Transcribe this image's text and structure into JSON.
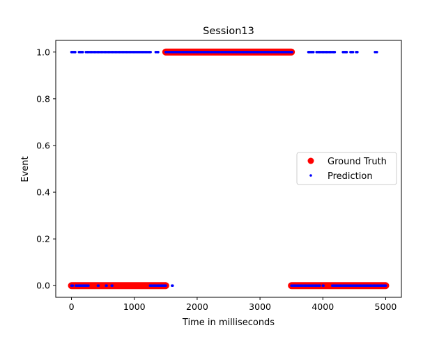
{
  "chart_data": {
    "type": "scatter",
    "title": "Session13",
    "xlabel": "Time in  milliseconds",
    "ylabel": "Event",
    "xlim": [
      -250,
      5250
    ],
    "ylim": [
      -0.05,
      1.05
    ],
    "xticks": [
      0,
      1000,
      2000,
      3000,
      4000,
      5000
    ],
    "yticks": [
      0.0,
      0.2,
      0.4,
      0.6,
      0.8,
      1.0
    ],
    "xtick_labels": [
      "0",
      "1000",
      "2000",
      "3000",
      "4000",
      "5000"
    ],
    "ytick_labels": [
      "0.0",
      "0.2",
      "0.4",
      "0.6",
      "0.8",
      "1.0"
    ],
    "legend_position": "center-right",
    "series": [
      {
        "name": "Ground Truth",
        "color": "#ff0000",
        "marker": "large-dot",
        "segments": [
          {
            "y": 0,
            "x_start": 0,
            "x_end": 1500
          },
          {
            "y": 1,
            "x_start": 1500,
            "x_end": 3500
          },
          {
            "y": 0,
            "x_start": 3500,
            "x_end": 5000
          }
        ]
      },
      {
        "name": "Prediction",
        "color": "#0000ff",
        "marker": "small-dot",
        "segments": [
          {
            "y": 0,
            "x_start": 0,
            "x_end": 20
          },
          {
            "y": 0,
            "x_start": 70,
            "x_end": 270
          },
          {
            "y": 0,
            "x_start": 420,
            "x_end": 430
          },
          {
            "y": 0,
            "x_start": 550,
            "x_end": 560
          },
          {
            "y": 0,
            "x_start": 640,
            "x_end": 650
          },
          {
            "y": 0,
            "x_start": 1250,
            "x_end": 1500
          },
          {
            "y": 0,
            "x_start": 1600,
            "x_end": 1610
          },
          {
            "y": 0,
            "x_start": 3500,
            "x_end": 3950
          },
          {
            "y": 0,
            "x_start": 4000,
            "x_end": 4010
          },
          {
            "y": 0,
            "x_start": 4150,
            "x_end": 5000
          },
          {
            "y": 1,
            "x_start": 0,
            "x_end": 60
          },
          {
            "y": 1,
            "x_start": 120,
            "x_end": 180
          },
          {
            "y": 1,
            "x_start": 230,
            "x_end": 1260
          },
          {
            "y": 1,
            "x_start": 1340,
            "x_end": 1380
          },
          {
            "y": 1,
            "x_start": 1500,
            "x_end": 3510
          },
          {
            "y": 1,
            "x_start": 3770,
            "x_end": 3850
          },
          {
            "y": 1,
            "x_start": 3900,
            "x_end": 4190
          },
          {
            "y": 1,
            "x_start": 4320,
            "x_end": 4380
          },
          {
            "y": 1,
            "x_start": 4440,
            "x_end": 4480
          },
          {
            "y": 1,
            "x_start": 4530,
            "x_end": 4550
          },
          {
            "y": 1,
            "x_start": 4830,
            "x_end": 4860
          }
        ]
      }
    ]
  }
}
